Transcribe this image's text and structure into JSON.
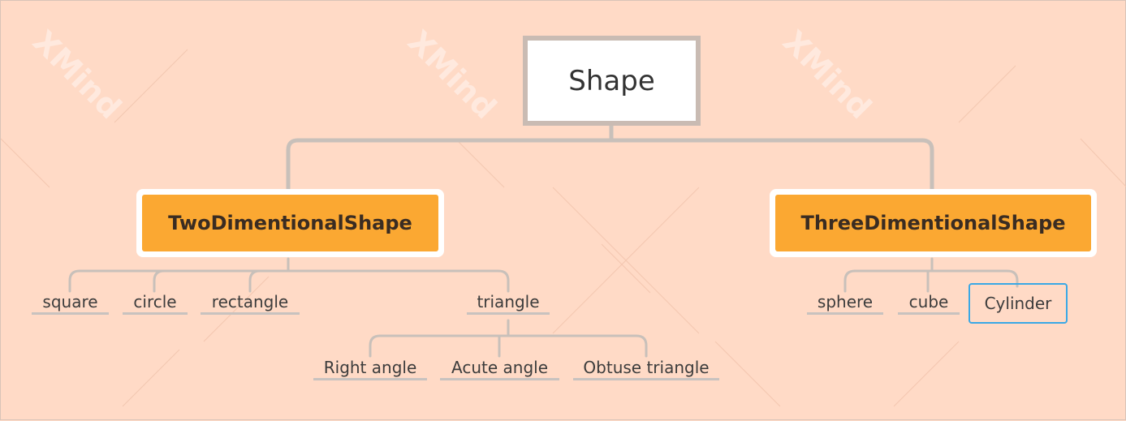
{
  "watermark": "XMind",
  "colors": {
    "background": "#ffdac6",
    "main_topic": "#fba832",
    "connector": "#c8c0ba",
    "selection": "#3aa8e5"
  },
  "root": {
    "label": "Shape"
  },
  "branches": [
    {
      "label": "TwoDimentionalShape",
      "children": [
        "square",
        "circle",
        "rectangle",
        "triangle"
      ],
      "triangle_children": [
        "Right angle",
        "Acute angle",
        "Obtuse triangle"
      ]
    },
    {
      "label": "ThreeDimentionalShape",
      "children": [
        "sphere",
        "cube",
        "Cylinder"
      ],
      "selected": "Cylinder"
    }
  ]
}
